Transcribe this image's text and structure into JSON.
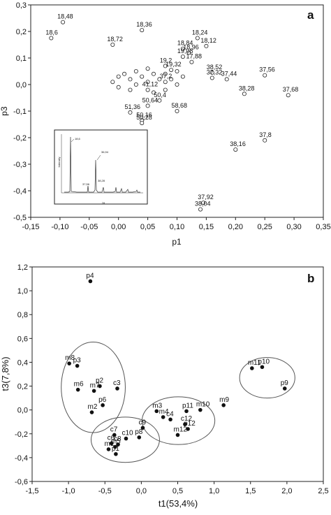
{
  "chart_data": [
    {
      "type": "scatter",
      "panel_label": "a",
      "xlabel": "p1",
      "ylabel": "p3",
      "xlim": [
        -0.15,
        0.35
      ],
      "ylim": [
        -0.5,
        0.3
      ],
      "x_ticks": [
        -0.15,
        -0.1,
        -0.05,
        0.0,
        0.05,
        0.1,
        0.15,
        0.2,
        0.25,
        0.3,
        0.35
      ],
      "x_tick_labels": [
        "-0,15",
        "-0,10",
        "-0,05",
        "0,00",
        "0,05",
        "0,10",
        "0,15",
        "0,20",
        "0,25",
        "0,30",
        "0,35"
      ],
      "y_ticks": [
        0.3,
        0.2,
        0.1,
        0.0,
        -0.1,
        -0.2,
        -0.3,
        -0.4,
        -0.5
      ],
      "y_tick_labels": [
        "0,3",
        "0,2",
        "0,1",
        "0,0",
        "-0,1",
        "-0,2",
        "-0,3",
        "-0,4",
        "-0,5"
      ],
      "marker": "open-circle",
      "labeled_points": [
        {
          "label": "18,48",
          "x": -0.095,
          "y": 0.235
        },
        {
          "label": "18,6",
          "x": -0.115,
          "y": 0.175
        },
        {
          "label": "18,36",
          "x": 0.04,
          "y": 0.205
        },
        {
          "label": "18,72",
          "x": -0.01,
          "y": 0.15
        },
        {
          "label": "18,24",
          "x": 0.135,
          "y": 0.175
        },
        {
          "label": "18,12",
          "x": 0.15,
          "y": 0.145
        },
        {
          "label": "18,84",
          "x": 0.11,
          "y": 0.135
        },
        {
          "label": "18,96",
          "x": 0.12,
          "y": 0.12
        },
        {
          "label": "19,08",
          "x": 0.11,
          "y": 0.105
        },
        {
          "label": "17,88",
          "x": 0.125,
          "y": 0.085
        },
        {
          "label": "19,2",
          "x": 0.08,
          "y": 0.07
        },
        {
          "label": "19,32",
          "x": 0.09,
          "y": 0.055
        },
        {
          "label": "38,52",
          "x": 0.16,
          "y": 0.045
        },
        {
          "label": "37,32",
          "x": 0.16,
          "y": 0.025
        },
        {
          "label": "37,44",
          "x": 0.185,
          "y": 0.02
        },
        {
          "label": "37,2",
          "x": 0.08,
          "y": 0.01
        },
        {
          "label": "37,56",
          "x": 0.25,
          "y": 0.035
        },
        {
          "label": "38,28",
          "x": 0.215,
          "y": -0.035
        },
        {
          "label": "37,68",
          "x": 0.29,
          "y": -0.04
        },
        {
          "label": "41,12",
          "x": 0.05,
          "y": -0.02
        },
        {
          "label": "50,64",
          "x": 0.05,
          "y": -0.08
        },
        {
          "label": "58,68",
          "x": 0.1,
          "y": -0.1
        },
        {
          "label": "50,4",
          "x": 0.07,
          "y": -0.06
        },
        {
          "label": "51,36",
          "x": 0.02,
          "y": -0.105
        },
        {
          "label": "50,16",
          "x": 0.04,
          "y": -0.135
        },
        {
          "label": "50,28",
          "x": 0.04,
          "y": -0.145
        },
        {
          "label": "38,16",
          "x": 0.2,
          "y": -0.245
        },
        {
          "label": "37,8",
          "x": 0.25,
          "y": -0.21
        },
        {
          "label": "37,92",
          "x": 0.145,
          "y": -0.445
        },
        {
          "label": "38,04",
          "x": 0.14,
          "y": -0.47
        }
      ],
      "cluster_note_points": [
        {
          "x": -0.01,
          "y": 0.01
        },
        {
          "x": 0.0,
          "y": 0.03
        },
        {
          "x": 0.01,
          "y": 0.04
        },
        {
          "x": 0.02,
          "y": 0.02
        },
        {
          "x": 0.03,
          "y": 0.05
        },
        {
          "x": 0.04,
          "y": 0.03
        },
        {
          "x": 0.05,
          "y": 0.06
        },
        {
          "x": 0.06,
          "y": 0.04
        },
        {
          "x": 0.07,
          "y": 0.02
        },
        {
          "x": 0.0,
          "y": -0.01
        },
        {
          "x": 0.02,
          "y": -0.02
        },
        {
          "x": 0.03,
          "y": 0.0
        },
        {
          "x": 0.05,
          "y": 0.01
        },
        {
          "x": 0.08,
          "y": 0.04
        },
        {
          "x": 0.09,
          "y": 0.02
        },
        {
          "x": 0.1,
          "y": 0.05
        },
        {
          "x": 0.11,
          "y": 0.03
        },
        {
          "x": 0.06,
          "y": -0.03
        },
        {
          "x": 0.08,
          "y": -0.02
        },
        {
          "x": 0.1,
          "y": 0.0
        }
      ],
      "inset": {
        "xlabel": "2θ",
        "ylabel": "Intensity",
        "annotations": [
          "18,6",
          "36,94",
          "37,56",
          "38,28"
        ]
      }
    },
    {
      "type": "scatter",
      "panel_label": "b",
      "xlabel": "t1(53,4%)",
      "ylabel": "t3(7,8%)",
      "xlim": [
        -1.5,
        2.5
      ],
      "ylim": [
        -0.6,
        1.2
      ],
      "x_ticks": [
        -1.5,
        -1.0,
        -0.5,
        0.0,
        0.5,
        1.0,
        1.5,
        2.0,
        2.5
      ],
      "x_tick_labels": [
        "-1,5",
        "-1,0",
        "-0,5",
        "0,0",
        "0,5",
        "1,0",
        "1,5",
        "2,0",
        "2,5"
      ],
      "y_ticks": [
        1.2,
        1.0,
        0.8,
        0.6,
        0.4,
        0.2,
        0.0,
        -0.2,
        -0.4,
        -0.6
      ],
      "y_tick_labels": [
        "1,2",
        "1,0",
        "0,8",
        "0,6",
        "0,4",
        "0,2",
        "0,0",
        "-0,2",
        "-0,4",
        "-0,6"
      ],
      "marker": "filled-circle",
      "points": [
        {
          "label": "p4",
          "x": -0.7,
          "y": 1.08
        },
        {
          "label": "m8",
          "x": -0.99,
          "y": 0.39
        },
        {
          "label": "p3",
          "x": -0.88,
          "y": 0.37
        },
        {
          "label": "m6",
          "x": -0.87,
          "y": 0.17
        },
        {
          "label": "m7",
          "x": -0.65,
          "y": 0.16
        },
        {
          "label": "p2",
          "x": -0.57,
          "y": 0.2
        },
        {
          "label": "c3",
          "x": -0.33,
          "y": 0.18
        },
        {
          "label": "p6",
          "x": -0.53,
          "y": 0.04
        },
        {
          "label": "m2",
          "x": -0.68,
          "y": -0.02
        },
        {
          "label": "m11",
          "x": 1.52,
          "y": 0.35
        },
        {
          "label": "p10",
          "x": 1.66,
          "y": 0.36
        },
        {
          "label": "p9",
          "x": 1.97,
          "y": 0.18
        },
        {
          "label": "m9",
          "x": 1.13,
          "y": 0.04
        },
        {
          "label": "p11",
          "x": 0.62,
          "y": -0.01
        },
        {
          "label": "m10",
          "x": 0.81,
          "y": 0.0
        },
        {
          "label": "m3",
          "x": 0.21,
          "y": -0.01
        },
        {
          "label": "m4",
          "x": 0.3,
          "y": -0.06
        },
        {
          "label": "c4",
          "x": 0.4,
          "y": -0.08
        },
        {
          "label": "c12",
          "x": 0.6,
          "y": -0.12
        },
        {
          "label": "p12",
          "x": 0.64,
          "y": -0.16
        },
        {
          "label": "m12",
          "x": 0.5,
          "y": -0.21
        },
        {
          "label": "c9",
          "x": 0.02,
          "y": -0.15
        },
        {
          "label": "p8",
          "x": -0.03,
          "y": -0.23
        },
        {
          "label": "c10",
          "x": -0.21,
          "y": -0.24
        },
        {
          "label": "c7",
          "x": -0.37,
          "y": -0.21
        },
        {
          "label": "c6",
          "x": -0.41,
          "y": -0.28
        },
        {
          "label": "m1",
          "x": -0.45,
          "y": -0.33
        },
        {
          "label": "p1",
          "x": -0.35,
          "y": -0.37
        },
        {
          "label": "c8",
          "x": -0.32,
          "y": -0.29
        },
        {
          "label": "m5",
          "x": -0.36,
          "y": -0.31
        }
      ],
      "clusters": [
        {
          "cx": -0.66,
          "cy": 0.19,
          "rx": 0.44,
          "ry": 0.38
        },
        {
          "cx": -0.22,
          "cy": -0.25,
          "rx": 0.47,
          "ry": 0.19
        },
        {
          "cx": 0.51,
          "cy": -0.09,
          "rx": 0.5,
          "ry": 0.2
        },
        {
          "cx": 1.73,
          "cy": 0.27,
          "rx": 0.38,
          "ry": 0.17
        }
      ]
    }
  ]
}
